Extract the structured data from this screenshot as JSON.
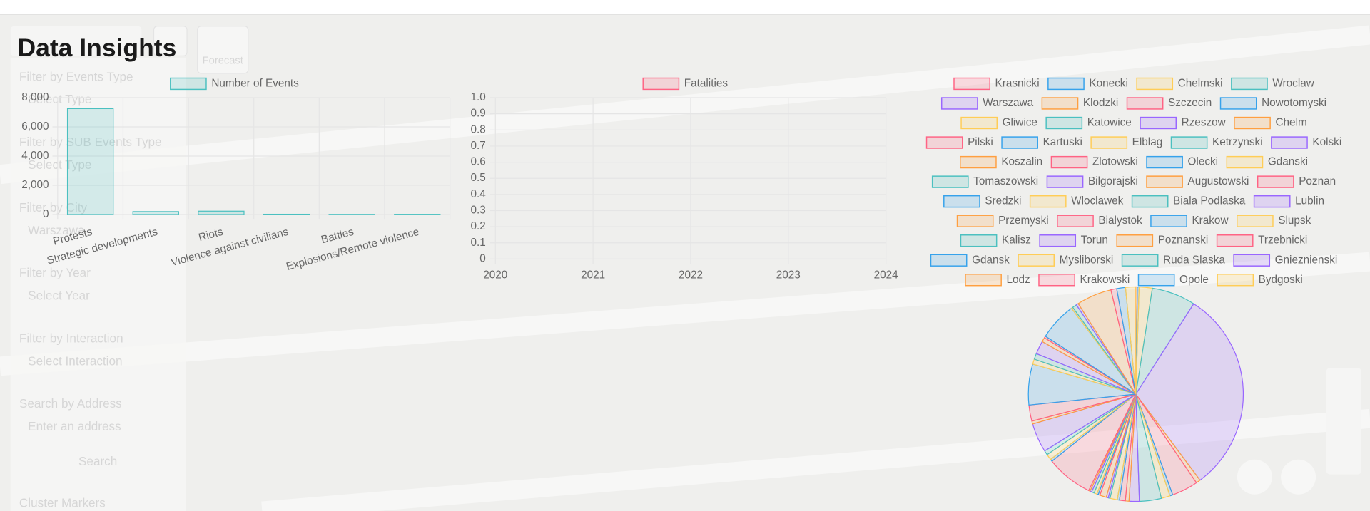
{
  "title": "Data Insights",
  "forecast_button": "Forecast",
  "sidebar": {
    "fields": [
      {
        "label": "Filter by Events Type",
        "placeholder": "Select Type"
      },
      {
        "label": "Filter by SUB Events Type",
        "placeholder": "Select Type"
      },
      {
        "label": "Filter by City",
        "placeholder": "Warszawa"
      },
      {
        "label": "Filter by Year",
        "placeholder": "Select Year"
      },
      {
        "label": "Filter by Interaction",
        "placeholder": "Select Interaction"
      },
      {
        "label": "Search by Address",
        "placeholder": "Enter an address"
      }
    ],
    "button": "Search",
    "footer": "Cluster Markers"
  },
  "chart_data": [
    {
      "type": "bar",
      "series": [
        {
          "name": "Number of Events",
          "color": "rgb(75, 192, 192)",
          "values": [
            7250,
            200,
            230,
            20,
            10,
            15
          ]
        }
      ],
      "categories": [
        "Protests",
        "Strategic developments",
        "Riots",
        "Violence against civilians",
        "Battles",
        "Explosions/Remote violence"
      ],
      "ylim": [
        0,
        8000
      ],
      "yticks": [
        0,
        {
          "value": 2000,
          "label": "2,000"
        },
        {
          "value": 4000,
          "label": "4,000"
        },
        {
          "value": 6000,
          "label": "6,000"
        },
        {
          "value": 8000,
          "label": "8,000"
        }
      ],
      "grid": true
    },
    {
      "type": "line",
      "series": [
        {
          "name": "Fatalities",
          "color": "rgb(255, 99, 132)",
          "values": []
        }
      ],
      "x": [],
      "xlim": [
        2020,
        2024
      ],
      "xticks": [
        2020,
        2021,
        2022,
        2023,
        2024
      ],
      "ylim": [
        0,
        1
      ],
      "yticks": [
        0,
        0.1,
        0.2,
        0.3,
        0.4,
        0.5,
        0.6,
        0.7,
        0.8,
        0.9,
        {
          "value": 1,
          "label": "1.0"
        }
      ],
      "grid": true
    },
    {
      "type": "pie",
      "categories": [
        "Krasnicki",
        "Konecki",
        "Chelmski",
        "Wroclaw",
        "Warszawa",
        "Klodzki",
        "Szczecin",
        "Nowotomyski",
        "Gliwice",
        "Katowice",
        "Rzeszow",
        "Chelm",
        "Pilski",
        "Kartuski",
        "Elblag",
        "Ketrzynski",
        "Kolski",
        "Koszalin",
        "Zlotowski",
        "Olecki",
        "Gdanski",
        "Tomaszowski",
        "Bilgorajski",
        "Augustowski",
        "Poznan",
        "Sredzki",
        "Wloclawek",
        "Biala Podlaska",
        "Lublin",
        "Przemyski",
        "Bialystok",
        "Krakow",
        "Slupsk",
        "Kalisz",
        "Torun",
        "Poznanski",
        "Trzebnicki",
        "Gdansk",
        "Mysliborski",
        "Ruda Slaska",
        "Gnieznienski",
        "Lodz",
        "Krakowski",
        "Opole",
        "Bydgoski"
      ],
      "values": [
        10,
        12,
        90,
        300,
        1400,
        30,
        180,
        20,
        60,
        150,
        70,
        25,
        40,
        15,
        50,
        12,
        14,
        45,
        12,
        10,
        20,
        18,
        12,
        10,
        320,
        15,
        40,
        30,
        200,
        20,
        110,
        280,
        35,
        40,
        90,
        30,
        12,
        260,
        10,
        30,
        15,
        240,
        40,
        60,
        70
      ],
      "colors": [
        "rgb(255, 99, 132)",
        "rgb(54, 162, 235)",
        "rgb(255, 205, 86)",
        "rgb(75, 192, 192)",
        "rgb(153, 102, 255)",
        "rgb(255, 159, 64)"
      ]
    }
  ]
}
